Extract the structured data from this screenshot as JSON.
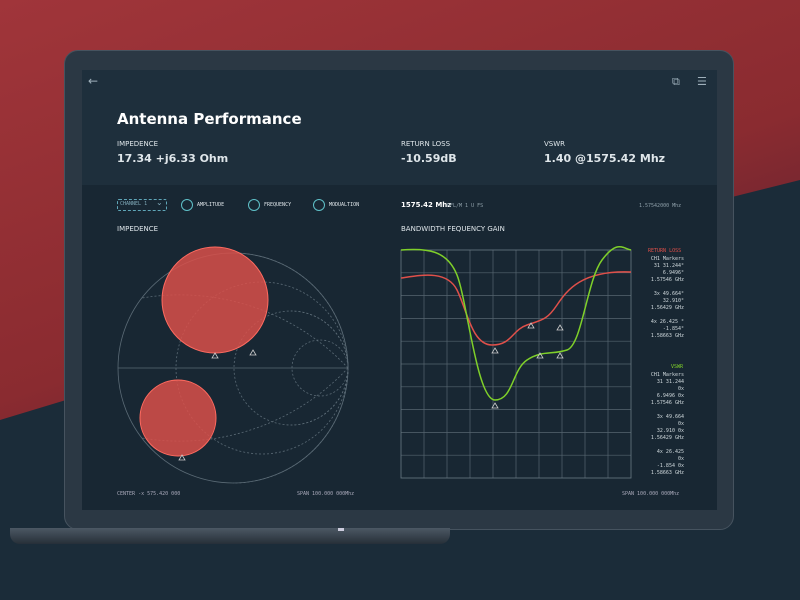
{
  "header": {
    "title": "Antenna Performance",
    "back_icon": "arrow-left-icon",
    "share_icon": "external-link-icon",
    "settings_icon": "sliders-icon"
  },
  "stats": [
    {
      "label": "IMPEDENCE",
      "value": "17.34 +j6.33 Ohm"
    },
    {
      "label": "RETURN LOSS",
      "value": "-10.59dB"
    },
    {
      "label": "VSWR",
      "value": "1.40 @1575.42 Mhz"
    }
  ],
  "toolbar": {
    "channel": "CHANNEL 1",
    "options": [
      "AMPLITUDE",
      "FREQUENCY",
      "MODUALTION"
    ],
    "frequency": "1575.42 Mhz",
    "mode": "RFL/M 1 U  FS",
    "freq_right": "1.57542000 Mhz"
  },
  "impedence": {
    "title": "IMPEDENCE",
    "center": "CENTER -x 575.420 000",
    "span": "SPAN 100.000 000Mhz"
  },
  "gain": {
    "title": "BANDWIDTH FEQUENCY GAIN",
    "span": "SPAN 100.000 000Mhz"
  },
  "markers": {
    "return_loss": {
      "title": "RETURN LOSS",
      "color": "#e0504a",
      "lines": [
        "CH1 Markers",
        "31 31.244°",
        "6.9496°",
        "1.57546 GHz",
        "",
        "3x 49.664°",
        "32.910°",
        "1.56429 GHz",
        "",
        "4x 26.425 °",
        "-1.854°",
        "1.58663 GHz"
      ]
    },
    "vswr": {
      "title": "VSWR",
      "color": "#7fd02a",
      "lines": [
        "CH1 Markers",
        "31 31.244",
        "0x",
        "6.9496 0x",
        "1.57546 GHz",
        "",
        "3x 49.664",
        "0x",
        "32.910 0x",
        "1.56429 GHz",
        "",
        "4x 26.425",
        "0x",
        "-1.854 0x",
        "1.58663 GHz"
      ]
    }
  }
}
